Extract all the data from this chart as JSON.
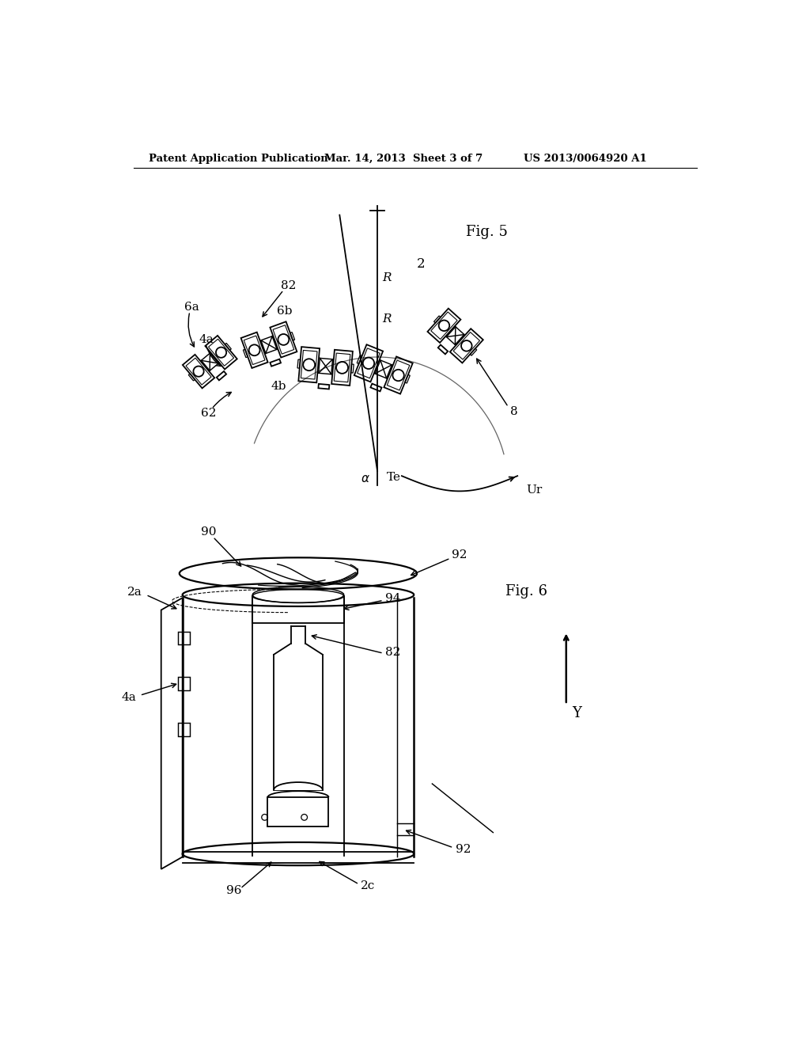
{
  "background_color": "#ffffff",
  "header_left": "Patent Application Publication",
  "header_mid": "Mar. 14, 2013  Sheet 3 of 7",
  "header_right": "US 2013/0064920 A1",
  "fig5_label": "Fig. 5",
  "fig6_label": "Fig. 6",
  "lw": 1.3
}
